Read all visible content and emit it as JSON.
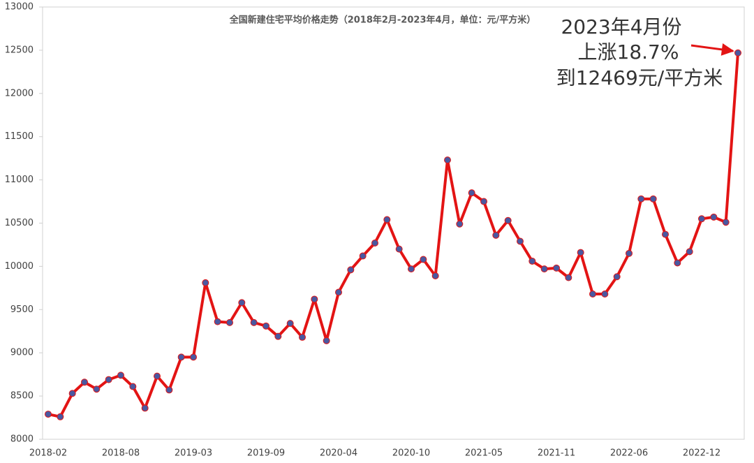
{
  "chart_data": {
    "type": "line",
    "title": "全国新建住宅平均价格走势（2018年2月-2023年4月，单位：元/平方米）",
    "annotation": [
      "2023年4月份",
      "上涨18.7%",
      "到12469元/平方米"
    ],
    "categories": [
      "2018-02",
      null,
      null,
      null,
      null,
      null,
      "2018-08",
      null,
      null,
      null,
      null,
      null,
      "2019-03",
      null,
      null,
      null,
      null,
      null,
      "2019-09",
      null,
      null,
      null,
      null,
      null,
      "2020-04",
      null,
      null,
      null,
      null,
      null,
      "2020-10",
      null,
      null,
      null,
      null,
      null,
      "2021-05",
      null,
      null,
      null,
      null,
      null,
      "2021-11",
      null,
      null,
      null,
      null,
      null,
      "2022-06",
      null,
      null,
      null,
      null,
      null,
      "2022-12",
      null,
      null,
      null
    ],
    "series": [
      {
        "name": "全国新建住宅平均价格",
        "color": "#e31414",
        "marker_color": "#4a58a0",
        "values": [
          8290,
          8260,
          8530,
          8660,
          8580,
          8690,
          8740,
          8610,
          8360,
          8730,
          8570,
          8950,
          8950,
          9810,
          9360,
          9350,
          9580,
          9350,
          9310,
          9190,
          9340,
          9180,
          9620,
          9140,
          9700,
          9960,
          10120,
          10270,
          10540,
          10200,
          9970,
          10080,
          9890,
          11230,
          10490,
          10850,
          10750,
          10360,
          10530,
          10290,
          10060,
          9970,
          9980,
          9870,
          10160,
          9680,
          9680,
          9880,
          10150,
          10780,
          10780,
          10370,
          10040,
          10170,
          10550,
          10570,
          10510,
          12469
        ]
      }
    ],
    "ylim": [
      8000,
      13000
    ],
    "yticks": [
      8000,
      8500,
      9000,
      9500,
      10000,
      10500,
      11000,
      11500,
      12000,
      12500,
      13000
    ],
    "grid": false
  }
}
